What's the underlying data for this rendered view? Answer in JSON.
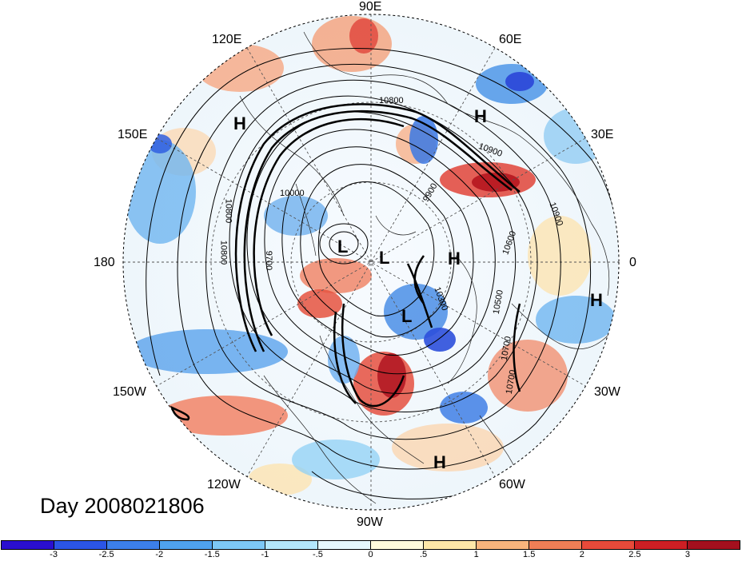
{
  "title": "Day 2008021806",
  "lon_labels": {
    "e90": "90E",
    "e60": "60E",
    "e30": "30E",
    "e120": "120E",
    "e150": "150E",
    "l180": "180",
    "l0": "0",
    "w150": "150W",
    "w120": "120W",
    "w90": "90W",
    "w60": "60W",
    "w30": "30W"
  },
  "pressure_centers": [
    {
      "type": "H"
    },
    {
      "type": "H"
    },
    {
      "type": "L"
    },
    {
      "type": "L"
    },
    {
      "type": "H"
    },
    {
      "type": "L"
    },
    {
      "type": "H"
    },
    {
      "type": "H"
    }
  ],
  "contour_labels": [
    "10800",
    "10900",
    "9900",
    "10600",
    "10700",
    "9700",
    "10000",
    "10300",
    "10500",
    "10800",
    "10900",
    "10700",
    "10800"
  ],
  "colorbar": {
    "colors": [
      "#2a0fd0",
      "#2b55e6",
      "#3c7fea",
      "#4fa2ee",
      "#7dc8f5",
      "#b3e7fb",
      "#e6f8fd",
      "#fffbdc",
      "#fde7a8",
      "#f8b47c",
      "#f07e56",
      "#e84a3a",
      "#cc1f24",
      "#a4101e"
    ],
    "ticks": [
      "-3",
      "-2.5",
      "-2",
      "-1.5",
      "-1",
      "-.5",
      "0",
      ".5",
      "1",
      "1.5",
      "2",
      "2.5",
      "3"
    ]
  }
}
